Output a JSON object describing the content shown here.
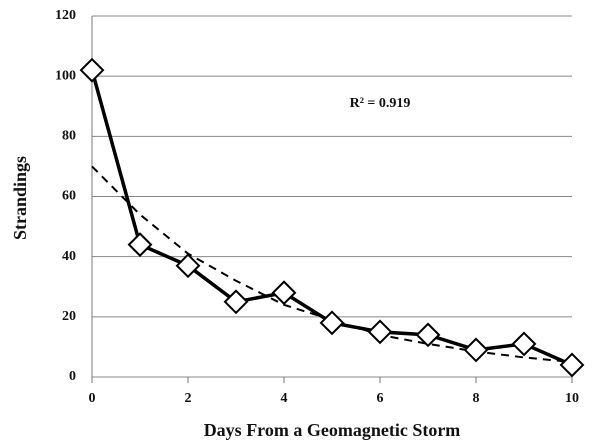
{
  "chart_data": {
    "type": "line",
    "x_label": "Days From a Geomagnetic Storm",
    "y_label": "Strandings",
    "annotation": "R² = 0.919",
    "x": [
      0,
      1,
      2,
      3,
      4,
      5,
      6,
      7,
      8,
      9,
      10
    ],
    "series": [
      {
        "color": "#000000",
        "marker": "diamond",
        "values": [
          102,
          44,
          37,
          25,
          28,
          18,
          15,
          14,
          9,
          11,
          4
        ]
      },
      {
        "color": "#000000",
        "dashed": true,
        "values": [
          70,
          54,
          41,
          32,
          24,
          19,
          14,
          11,
          8.5,
          6.5,
          5
        ]
      }
    ],
    "xlim": [
      0,
      10
    ],
    "xticks": [
      0,
      2,
      4,
      6,
      8,
      10
    ],
    "ylim": [
      0,
      120
    ],
    "yticks": [
      0,
      20,
      40,
      60,
      80,
      100,
      120
    ],
    "grid": true
  }
}
